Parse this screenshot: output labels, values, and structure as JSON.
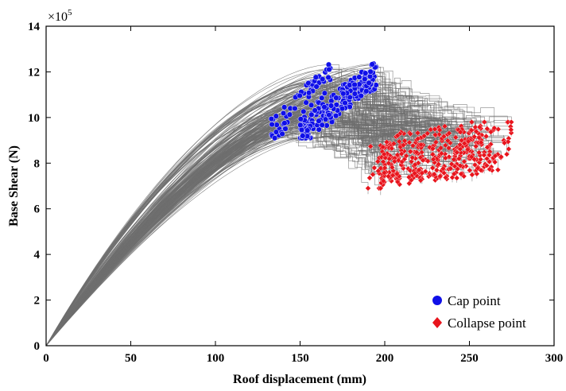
{
  "chart_data": {
    "type": "scatter",
    "title": "",
    "xlabel": "Roof displacement (mm)",
    "ylabel": "Base Shear (N)",
    "y_multiplier_label": "×10",
    "y_multiplier_exponent": "5",
    "xlim": [
      0,
      300
    ],
    "ylim": [
      0,
      14
    ],
    "x_ticks": [
      "0",
      "50",
      "100",
      "150",
      "200",
      "250",
      "300"
    ],
    "y_ticks": [
      "0",
      "2",
      "4",
      "6",
      "8",
      "10",
      "12",
      "14"
    ],
    "grid": false,
    "legend_position": "bottom-right",
    "series": [
      {
        "name": "Cap point",
        "marker": "circle",
        "color": "#1010e8",
        "x_range": [
          133,
          195
        ],
        "y_range": [
          9.1,
          12.5
        ],
        "approx_count": 250
      },
      {
        "name": "Collapse point",
        "marker": "diamond",
        "color": "#e8141c",
        "x_range": [
          190,
          275
        ],
        "y_range": [
          6.9,
          9.8
        ],
        "approx_count": 400
      }
    ],
    "curves": {
      "description_color": "#6e6e6e",
      "count": 200,
      "initial_stiffness_range": [
        8000,
        9500
      ],
      "cap_x_range": [
        135,
        195
      ],
      "cap_y_range": [
        9.1,
        12.5
      ],
      "collapse_x_range": [
        190,
        275
      ],
      "collapse_y_range": [
        6.9,
        9.8
      ]
    }
  }
}
